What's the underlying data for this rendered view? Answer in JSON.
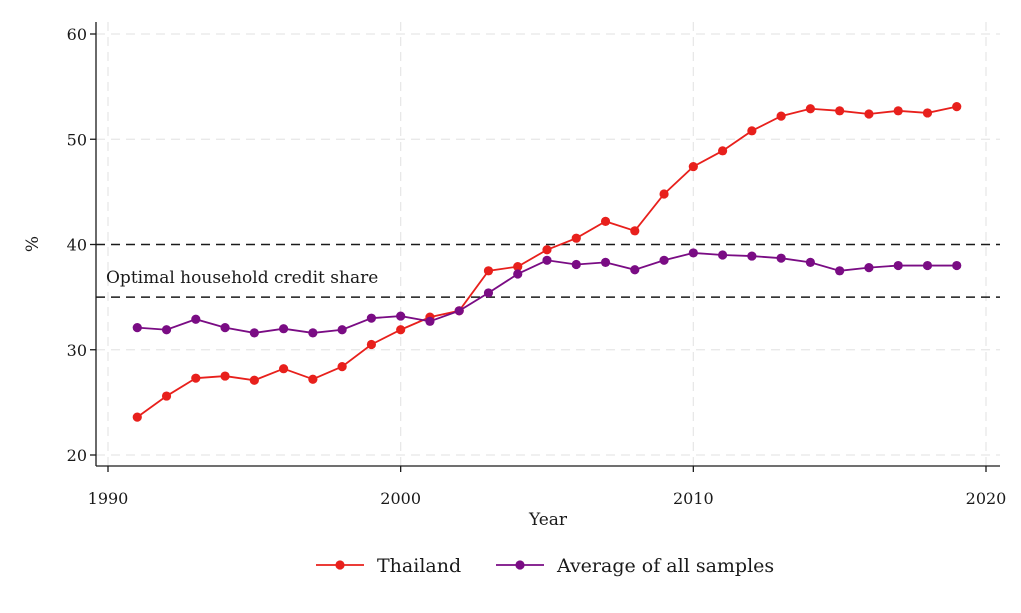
{
  "chart_data": {
    "type": "line",
    "xlabel": "Year",
    "ylabel": "%",
    "xlim": [
      1990,
      2020
    ],
    "ylim": [
      20,
      60
    ],
    "x_ticks": [
      1990,
      2000,
      2010,
      2020
    ],
    "y_ticks": [
      20,
      30,
      40,
      50,
      60
    ],
    "grid": true,
    "legend_position": "bottom",
    "x": [
      1991,
      1992,
      1993,
      1994,
      1995,
      1996,
      1997,
      1998,
      1999,
      2000,
      2001,
      2002,
      2003,
      2004,
      2005,
      2006,
      2007,
      2008,
      2009,
      2010,
      2011,
      2012,
      2013,
      2014,
      2015,
      2016,
      2017,
      2018,
      2019
    ],
    "series": [
      {
        "name": "Thailand",
        "color": "#e8201c",
        "values": [
          23.6,
          25.6,
          27.3,
          27.5,
          27.1,
          28.2,
          27.2,
          28.4,
          30.5,
          31.9,
          33.1,
          33.7,
          37.5,
          37.9,
          39.5,
          40.6,
          42.2,
          41.3,
          44.8,
          47.4,
          48.9,
          50.8,
          52.2,
          52.9,
          52.7,
          52.4,
          52.7,
          52.5,
          53.1
        ]
      },
      {
        "name": "Average of all samples",
        "color": "#7a0c84",
        "values": [
          32.1,
          31.9,
          32.9,
          32.1,
          31.6,
          32.0,
          31.6,
          31.9,
          33.0,
          33.2,
          32.7,
          33.7,
          35.4,
          37.2,
          38.5,
          38.1,
          38.3,
          37.6,
          38.5,
          39.2,
          39.0,
          38.9,
          38.7,
          38.3,
          37.5,
          37.8,
          38.0,
          38.0,
          38.0
        ]
      }
    ],
    "reference_lines": [
      {
        "y": 40,
        "style": "dashed"
      },
      {
        "y": 35,
        "style": "dashed",
        "label": "Optimal household credit share"
      }
    ]
  }
}
